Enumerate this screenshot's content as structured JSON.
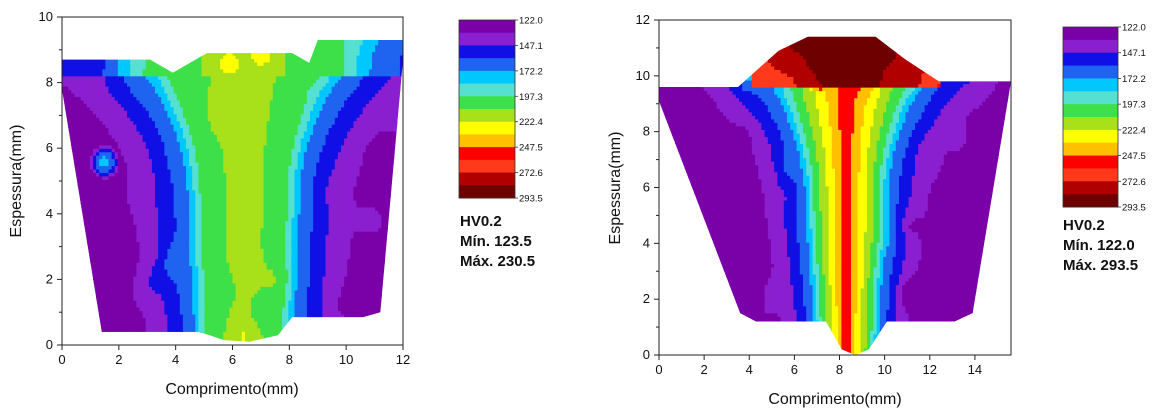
{
  "colors": {
    "levels": [
      "#7a00a8",
      "#8a1fd0",
      "#1010e6",
      "#1f64f0",
      "#00c8ff",
      "#55e0d0",
      "#3ee04a",
      "#a8e01a",
      "#ffff00",
      "#ffc000",
      "#ff0000",
      "#ff3a1a",
      "#b00000",
      "#6e0000"
    ]
  },
  "chart_data": [
    {
      "type": "heatmap",
      "title": "",
      "xlabel": "Comprimento(mm)",
      "ylabel": "Espessura(mm)",
      "xlim": [
        0,
        12
      ],
      "ylim": [
        0,
        10
      ],
      "xticks": [
        "0",
        "2",
        "4",
        "6",
        "8",
        "10",
        "12"
      ],
      "yticks": [
        "0",
        "2",
        "4",
        "6",
        "8",
        "10"
      ],
      "colorbar_ticks": [
        "122.0",
        "147.1",
        "172.2",
        "197.3",
        "222.4",
        "247.5",
        "272.6",
        "293.5"
      ],
      "stats_title": "HV0.2",
      "min_label": "Mín. 123.5",
      "max_label": "Máx. 230.5",
      "outline": [
        [
          0.0,
          8.7
        ],
        [
          3.1,
          8.7
        ],
        [
          3.9,
          8.3
        ],
        [
          5.1,
          8.9
        ],
        [
          8.1,
          8.9
        ],
        [
          8.7,
          8.6
        ],
        [
          9.0,
          9.3
        ],
        [
          12.0,
          9.3
        ],
        [
          12.0,
          8.7
        ],
        [
          11.2,
          1.0
        ],
        [
          10.6,
          0.85
        ],
        [
          8.1,
          0.85
        ],
        [
          7.6,
          0.3
        ],
        [
          6.6,
          0.1
        ],
        [
          5.7,
          0.15
        ],
        [
          5.2,
          0.3
        ],
        [
          4.8,
          0.4
        ],
        [
          1.4,
          0.4
        ],
        [
          0.0,
          7.8
        ]
      ],
      "fusion_zone": {
        "x_center": 6.4,
        "top_half_width": 2.6,
        "neck_half_width": 1.5,
        "bottom_half_width": 1.3,
        "max_value": 230.5
      },
      "hot_spots": [
        [
          5.9,
          8.6,
          229
        ],
        [
          7.0,
          8.9,
          230.5
        ],
        [
          6.7,
          2.6,
          214
        ],
        [
          6.5,
          3.9,
          208
        ]
      ],
      "cold_spots": [
        [
          1.5,
          5.6,
          175
        ]
      ]
    },
    {
      "type": "heatmap",
      "title": "",
      "xlabel": "Comprimento(mm)",
      "ylabel": "Espessura(mm)",
      "xlim": [
        0,
        15.6
      ],
      "ylim": [
        0,
        12
      ],
      "xticks": [
        "0",
        "2",
        "4",
        "6",
        "8",
        "10",
        "12",
        "14"
      ],
      "yticks": [
        "0",
        "2",
        "4",
        "6",
        "8",
        "10",
        "12"
      ],
      "colorbar_ticks": [
        "122.0",
        "147.1",
        "172.2",
        "197.3",
        "222.4",
        "247.5",
        "272.6",
        "293.5"
      ],
      "stats_title": "HV0.2",
      "min_label": "Mín. 122.0",
      "max_label": "Máx. 293.5",
      "outline": [
        [
          0.0,
          9.6
        ],
        [
          3.5,
          9.6
        ],
        [
          5.3,
          10.9
        ],
        [
          6.6,
          11.4
        ],
        [
          9.6,
          11.4
        ],
        [
          10.9,
          10.6
        ],
        [
          12.4,
          9.8
        ],
        [
          15.6,
          9.8
        ],
        [
          13.9,
          1.5
        ],
        [
          13.1,
          1.2
        ],
        [
          10.1,
          1.2
        ],
        [
          9.3,
          0.2
        ],
        [
          8.7,
          0.0
        ],
        [
          8.1,
          0.2
        ],
        [
          7.4,
          1.2
        ],
        [
          4.3,
          1.2
        ],
        [
          3.6,
          1.5
        ],
        [
          0.0,
          9.1
        ]
      ],
      "fusion_zone": {
        "x_center": 8.3,
        "top_half_width": 2.6,
        "neck_half_width": 1.4,
        "bottom_half_width": 1.0,
        "max_value": 293.5
      },
      "hot_spots": [
        [
          7.6,
          10.8,
          290
        ],
        [
          8.8,
          11.0,
          293.5
        ],
        [
          9.6,
          10.5,
          288
        ],
        [
          7.2,
          10.2,
          285
        ]
      ],
      "cold_spots": []
    }
  ]
}
